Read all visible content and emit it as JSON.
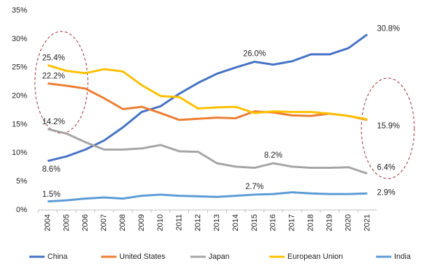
{
  "chart_data": {
    "type": "line",
    "categories": [
      "2004",
      "2005",
      "2006",
      "2007",
      "2008",
      "2009",
      "2010",
      "2011",
      "2012",
      "2013",
      "2014",
      "2015",
      "2016",
      "2017",
      "2018",
      "2019",
      "2020",
      "2021"
    ],
    "ylim": [
      0,
      35
    ],
    "yticks": [
      {
        "value": 0,
        "label": "0%"
      },
      {
        "value": 5,
        "label": "5%"
      },
      {
        "value": 10,
        "label": "10%"
      },
      {
        "value": 15,
        "label": "15%"
      },
      {
        "value": 20,
        "label": "20%"
      },
      {
        "value": 25,
        "label": "25%"
      },
      {
        "value": 30,
        "label": "30%"
      },
      {
        "value": 35,
        "label": "35%"
      }
    ],
    "legend": "bottom",
    "series": [
      {
        "name": "China",
        "color": "#4472c4",
        "values": [
          8.6,
          9.4,
          10.6,
          12.2,
          14.5,
          17.2,
          18.2,
          20.4,
          22.3,
          23.9,
          25.0,
          26.0,
          25.5,
          26.1,
          27.3,
          27.3,
          28.4,
          30.8
        ],
        "value_labels": [
          "8.6%",
          null,
          null,
          null,
          null,
          null,
          null,
          null,
          null,
          null,
          null,
          "26.0%",
          null,
          null,
          null,
          null,
          null,
          "30.8%"
        ]
      },
      {
        "name": "United States",
        "color": "#ed7d31",
        "values": [
          22.2,
          21.8,
          21.3,
          19.6,
          17.7,
          18.1,
          17.0,
          15.8,
          16.0,
          16.2,
          16.1,
          17.3,
          17.1,
          16.6,
          16.5,
          16.9,
          16.5,
          15.8
        ],
        "value_labels": [
          "22.2%",
          null,
          null,
          null,
          null,
          null,
          null,
          null,
          null,
          null,
          null,
          null,
          null,
          null,
          null,
          null,
          null,
          null
        ]
      },
      {
        "name": "Japan",
        "color": "#a5a5a5",
        "values": [
          14.2,
          13.4,
          11.9,
          10.6,
          10.6,
          10.8,
          11.4,
          10.3,
          10.2,
          8.2,
          7.6,
          7.4,
          8.2,
          7.6,
          7.4,
          7.4,
          7.5,
          6.4
        ],
        "value_labels": [
          "14.2%",
          null,
          null,
          null,
          null,
          null,
          null,
          null,
          null,
          null,
          null,
          null,
          "8.2%",
          null,
          null,
          null,
          null,
          "6.4%"
        ]
      },
      {
        "name": "European Union",
        "color": "#ffc000",
        "values": [
          25.4,
          24.4,
          24.0,
          24.7,
          24.3,
          21.9,
          20.0,
          19.8,
          17.8,
          18.0,
          18.1,
          17.0,
          17.3,
          17.2,
          17.2,
          16.9,
          16.5,
          15.9
        ],
        "value_labels": [
          "25.4%",
          null,
          null,
          null,
          null,
          null,
          null,
          null,
          null,
          null,
          null,
          null,
          null,
          null,
          null,
          null,
          null,
          "15.9%"
        ]
      },
      {
        "name": "India",
        "color": "#5b9bd5",
        "values": [
          1.5,
          1.7,
          2.0,
          2.2,
          2.0,
          2.5,
          2.7,
          2.5,
          2.4,
          2.3,
          2.5,
          2.7,
          2.8,
          3.1,
          2.9,
          2.8,
          2.8,
          2.9
        ],
        "value_labels": [
          "1.5%",
          null,
          null,
          null,
          null,
          null,
          null,
          null,
          null,
          null,
          null,
          "2.7%",
          null,
          null,
          null,
          null,
          null,
          "2.9%"
        ]
      }
    ]
  }
}
